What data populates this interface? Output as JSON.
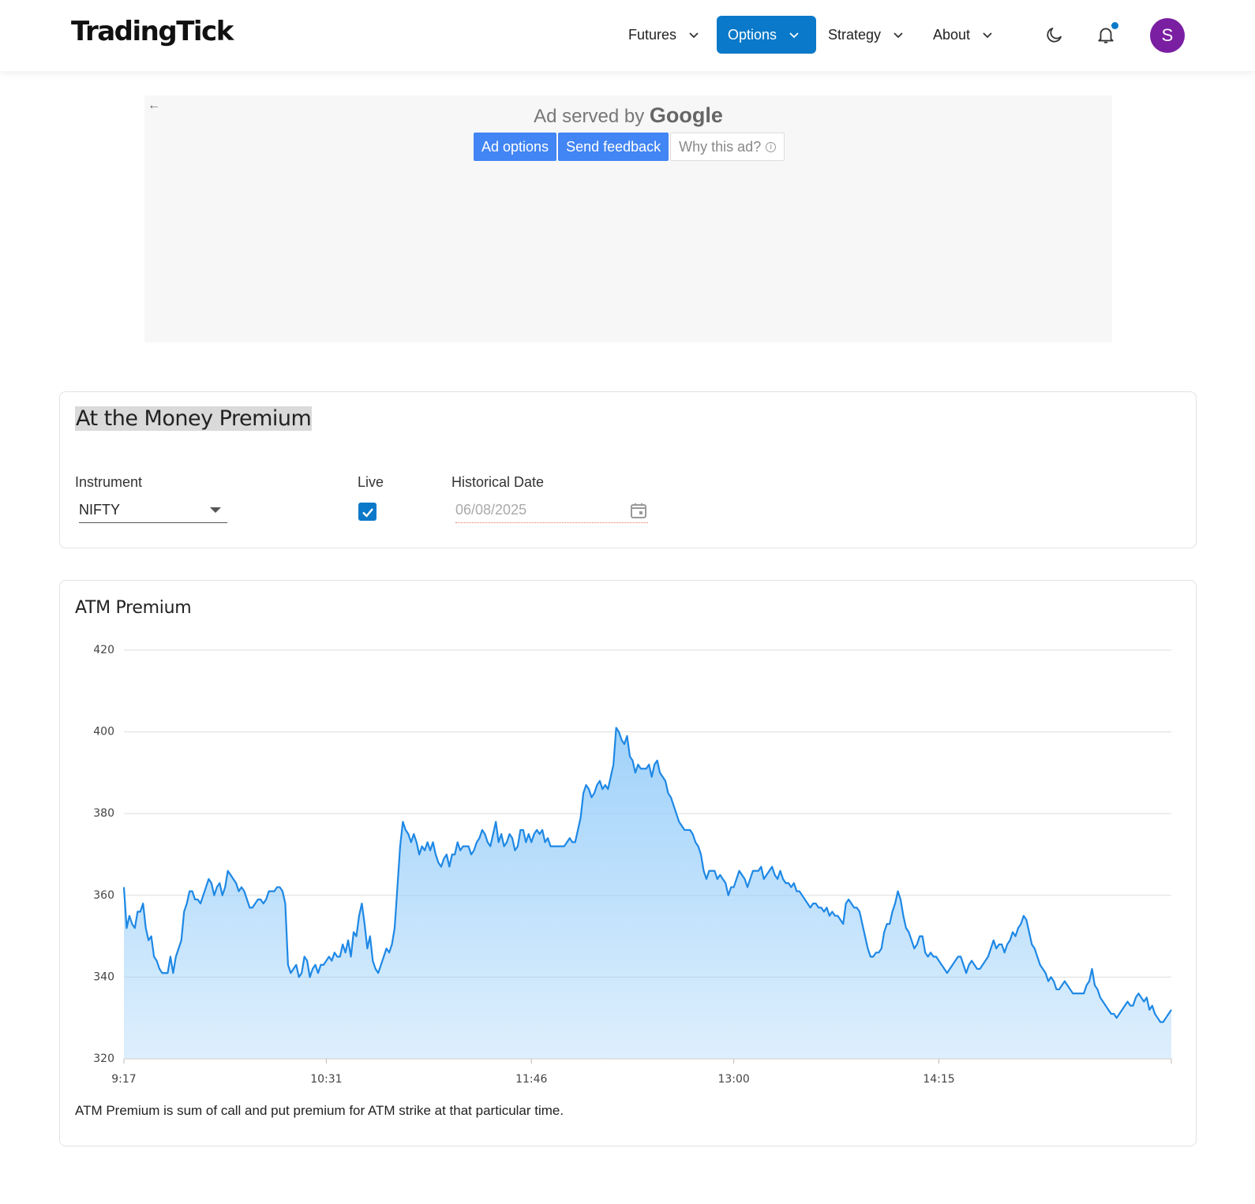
{
  "header": {
    "logo": "TradingTick",
    "nav": [
      {
        "label": "Futures",
        "active": false
      },
      {
        "label": "Options",
        "active": true
      },
      {
        "label": "Strategy",
        "active": false
      },
      {
        "label": "About",
        "active": false
      }
    ],
    "avatar_initial": "S",
    "accent_color": "#0a79c9",
    "avatar_color": "#7b1fa2"
  },
  "ad": {
    "served_prefix": "Ad served by",
    "served_brand": "Google",
    "buttons": [
      "Ad options",
      "Send feedback",
      "Why this ad?"
    ]
  },
  "controls": {
    "title": "At the Money Premium",
    "instrument_label": "Instrument",
    "instrument_value": "NIFTY",
    "live_label": "Live",
    "live_checked": true,
    "date_label": "Historical Date",
    "date_value": "06/08/2025"
  },
  "chart_card": {
    "title": "ATM Premium",
    "note": "ATM Premium is sum of call and put premium for ATM strike at that particular time."
  },
  "chart_data": {
    "type": "area",
    "title": "ATM Premium",
    "xlabel": "",
    "ylabel": "",
    "ylim": [
      320,
      420
    ],
    "yticks": [
      420,
      400,
      380,
      360,
      340,
      320
    ],
    "xticks": [
      "9:17",
      "10:31",
      "11:46",
      "13:00",
      "14:15"
    ],
    "xtick_index": [
      0,
      74,
      149,
      223,
      298
    ],
    "grid": true,
    "line_color": "#1e88e5",
    "fill_color": "#90caf9",
    "values": [
      362,
      352,
      355,
      353,
      352,
      356,
      356,
      358,
      352,
      349,
      350,
      345,
      344,
      342,
      341,
      341,
      341,
      345,
      341,
      345,
      347,
      349,
      356,
      358,
      361,
      361,
      359,
      359,
      358,
      360,
      362,
      364,
      363,
      360,
      362,
      363,
      360,
      362,
      366,
      365,
      364,
      363,
      361,
      362,
      361,
      359,
      357,
      357,
      358,
      359,
      359,
      358,
      359,
      361,
      361,
      361,
      362,
      362,
      361,
      358,
      343,
      341,
      342,
      343,
      340,
      341,
      345,
      344,
      340,
      342,
      343,
      341,
      343,
      343,
      344,
      345,
      344,
      346,
      345,
      345,
      348,
      346,
      349,
      345,
      351,
      350,
      355,
      358,
      353,
      347,
      350,
      344,
      342,
      341,
      343,
      345,
      347,
      346,
      348,
      352,
      362,
      372,
      378,
      376,
      375,
      373,
      375,
      373,
      370,
      372,
      371,
      373,
      371,
      373,
      370,
      368,
      367,
      369,
      370,
      367,
      370,
      370,
      373,
      371,
      372,
      372,
      372,
      370,
      371,
      373,
      374,
      376,
      375,
      373,
      372,
      375,
      378,
      373,
      375,
      372,
      373,
      375,
      374,
      371,
      372,
      376,
      376,
      373,
      375,
      373,
      375,
      376,
      375,
      376,
      373,
      374,
      372,
      372,
      372,
      372,
      372,
      372,
      373,
      374,
      373,
      373,
      376,
      379,
      385,
      387,
      386,
      384,
      385,
      387,
      388,
      386,
      387,
      386,
      389,
      392,
      401,
      400,
      398,
      397,
      399,
      394,
      393,
      390,
      392,
      391,
      391,
      391,
      392,
      389,
      392,
      393,
      390,
      389,
      388,
      385,
      384,
      382,
      380,
      378,
      377,
      376,
      376,
      376,
      375,
      373,
      372,
      370,
      366,
      364,
      366,
      366,
      366,
      364,
      365,
      364,
      363,
      360,
      362,
      362,
      364,
      366,
      365,
      364,
      362,
      364,
      366,
      366,
      366,
      367,
      364,
      365,
      366,
      367,
      365,
      364,
      366,
      364,
      363,
      363,
      362,
      363,
      361,
      361,
      360,
      359,
      358,
      357,
      358,
      358,
      357,
      357,
      356,
      357,
      355,
      356,
      355,
      355,
      354,
      353,
      358,
      359,
      358,
      357,
      357,
      356,
      353,
      350,
      347,
      345,
      345,
      346,
      346,
      347,
      351,
      353,
      353,
      356,
      358,
      361,
      359,
      355,
      352,
      351,
      349,
      347,
      348,
      350,
      350,
      346,
      345,
      346,
      345,
      345,
      344,
      343,
      342,
      341,
      342,
      343,
      344,
      345,
      345,
      343,
      341,
      343,
      344,
      343,
      342,
      342,
      343,
      344,
      345,
      347,
      349,
      347,
      348,
      348,
      346,
      348,
      349,
      351,
      350,
      352,
      353,
      355,
      354,
      351,
      348,
      347,
      345,
      343,
      342,
      341,
      339,
      340,
      339,
      337,
      337,
      338,
      339,
      338,
      337,
      336,
      336,
      336,
      336,
      336,
      338,
      339,
      342,
      338,
      337,
      335,
      334,
      333,
      332,
      331,
      331,
      330,
      331,
      332,
      333,
      334,
      333,
      333,
      335,
      336,
      335,
      334,
      335,
      332,
      333,
      331,
      330,
      329,
      329,
      330,
      331,
      332
    ]
  }
}
